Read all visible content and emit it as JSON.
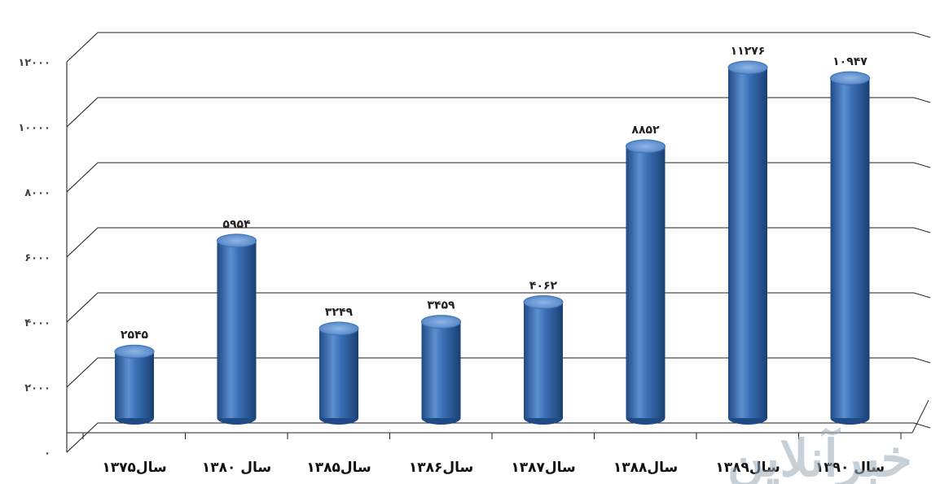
{
  "watermark": "خبرآنلاین",
  "chart_data": {
    "type": "bar",
    "style": "3d-cylinder",
    "categories": [
      "سال۱۳۷۵",
      "سال ۱۳۸۰",
      "سال۱۳۸۵",
      "سال۱۳۸۶",
      "سال۱۳۸۷",
      "سال۱۳۸۸",
      "سال۱۳۸۹",
      "سال ۱۳۹۰"
    ],
    "values": [
      2545,
      5954,
      3249,
      3459,
      4062,
      8852,
      11276,
      10947
    ],
    "value_labels": [
      "۲۵۴۵",
      "۵۹۵۴",
      "۳۲۴۹",
      "۳۴۵۹",
      "۴۰۶۲",
      "۸۸۵۲",
      "۱۱۲۷۶",
      "۱۰۹۴۷"
    ],
    "ylim": [
      0,
      12000
    ],
    "yticks": [
      0,
      2000,
      4000,
      6000,
      8000,
      10000,
      12000
    ],
    "ytick_labels": [
      "۰",
      "۲۰۰۰",
      "۴۰۰۰",
      "۶۰۰۰",
      "۸۰۰۰",
      "۱۰۰۰۰",
      "۱۲۰۰۰"
    ],
    "grid": true,
    "bar_color": "#3a6fb5",
    "bar_dark": "#1f4a85",
    "bar_light": "#7fa9de",
    "title": "",
    "xlabel": "",
    "ylabel": ""
  }
}
